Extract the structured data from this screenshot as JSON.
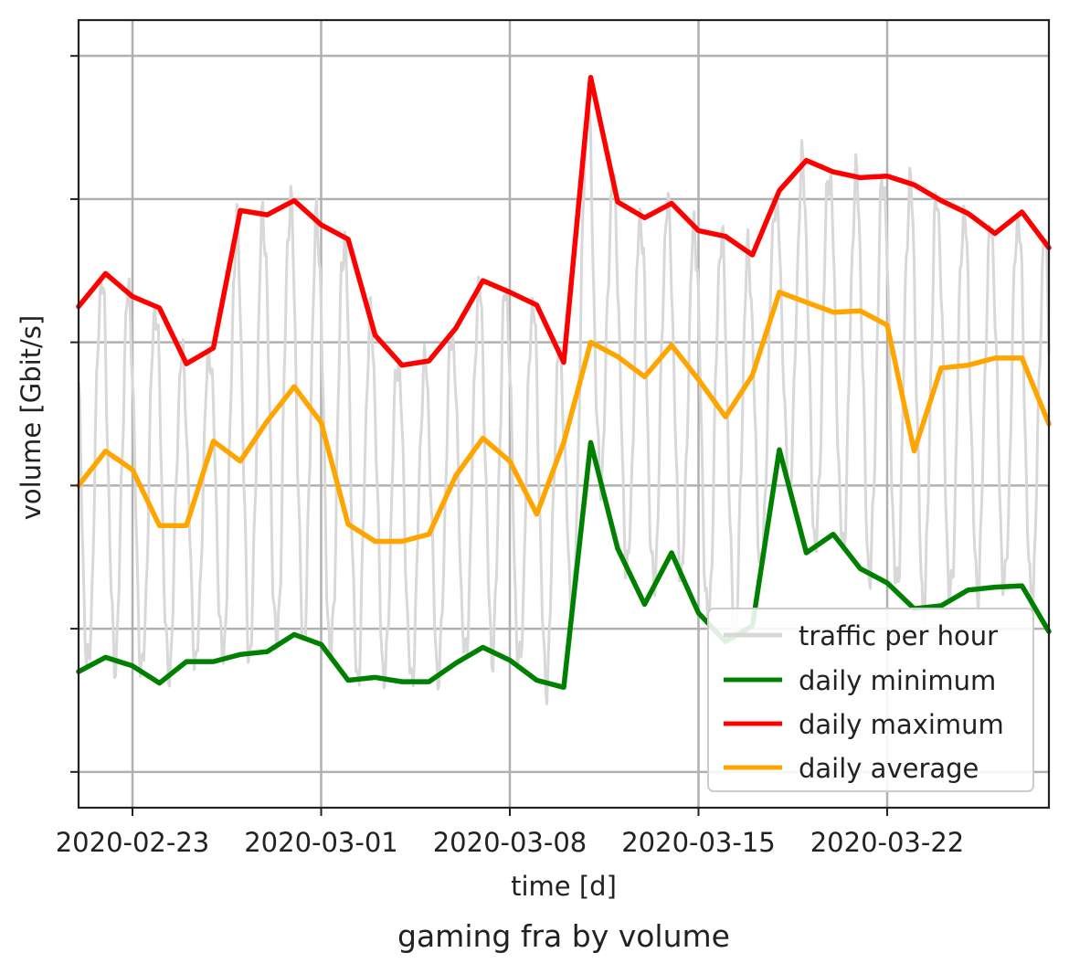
{
  "chart_data": {
    "type": "line",
    "title": "gaming fra by volume",
    "xlabel": "time [d]",
    "ylabel": "volume [Gbit/s]",
    "x_ticks": [
      "2020-02-23",
      "2020-03-01",
      "2020-03-08",
      "2020-03-15",
      "2020-03-22"
    ],
    "x_range": [
      "2020-02-21",
      "2020-03-28"
    ],
    "y_range": [
      -0.25,
      5.25
    ],
    "y_ticks": [
      0,
      1,
      2,
      3,
      4,
      5
    ],
    "y_tick_labels_visible": false,
    "grid": true,
    "legend_position": "bottom-right",
    "dates": [
      "2020-02-21",
      "2020-02-22",
      "2020-02-23",
      "2020-02-24",
      "2020-02-25",
      "2020-02-26",
      "2020-02-27",
      "2020-02-28",
      "2020-02-29",
      "2020-03-01",
      "2020-03-02",
      "2020-03-03",
      "2020-03-04",
      "2020-03-05",
      "2020-03-06",
      "2020-03-07",
      "2020-03-08",
      "2020-03-09",
      "2020-03-10",
      "2020-03-11",
      "2020-03-12",
      "2020-03-13",
      "2020-03-14",
      "2020-03-15",
      "2020-03-16",
      "2020-03-17",
      "2020-03-18",
      "2020-03-19",
      "2020-03-20",
      "2020-03-21",
      "2020-03-22",
      "2020-03-23",
      "2020-03-24",
      "2020-03-25",
      "2020-03-26",
      "2020-03-27",
      "2020-03-28"
    ],
    "series": [
      {
        "name": "daily minimum",
        "color": "#008000",
        "values": [
          0.7,
          0.8,
          0.74,
          0.62,
          0.77,
          0.77,
          0.82,
          0.84,
          0.96,
          0.89,
          0.64,
          0.66,
          0.63,
          0.63,
          0.76,
          0.87,
          0.78,
          0.64,
          0.59,
          2.3,
          1.56,
          1.17,
          1.53,
          1.11,
          0.91,
          1.02,
          2.25,
          1.53,
          1.66,
          1.42,
          1.32,
          1.14,
          1.16,
          1.27,
          1.29,
          1.3,
          0.98
        ]
      },
      {
        "name": "daily maximum",
        "color": "#ff0000",
        "values": [
          3.25,
          3.48,
          3.32,
          3.24,
          2.85,
          2.96,
          3.92,
          3.89,
          3.99,
          3.82,
          3.72,
          3.05,
          2.84,
          2.87,
          3.1,
          3.43,
          3.35,
          3.26,
          2.86,
          4.85,
          3.98,
          3.87,
          3.97,
          3.78,
          3.74,
          3.61,
          4.06,
          4.27,
          4.19,
          4.15,
          4.16,
          4.1,
          3.99,
          3.9,
          3.76,
          3.91,
          3.66
        ]
      },
      {
        "name": "daily average",
        "color": "#ffa500",
        "values": [
          2.0,
          2.24,
          2.11,
          1.72,
          1.72,
          2.31,
          2.17,
          2.45,
          2.69,
          2.44,
          1.73,
          1.61,
          1.61,
          1.66,
          2.07,
          2.33,
          2.17,
          1.8,
          2.3,
          3.0,
          2.9,
          2.76,
          2.98,
          2.74,
          2.48,
          2.77,
          3.35,
          3.28,
          3.21,
          3.22,
          3.12,
          2.24,
          2.82,
          2.84,
          2.89,
          2.89,
          2.43
        ]
      },
      {
        "name": "traffic per hour",
        "color": "#d8d8d8",
        "values_note_hidden": "",
        "hourly": true
      }
    ]
  }
}
